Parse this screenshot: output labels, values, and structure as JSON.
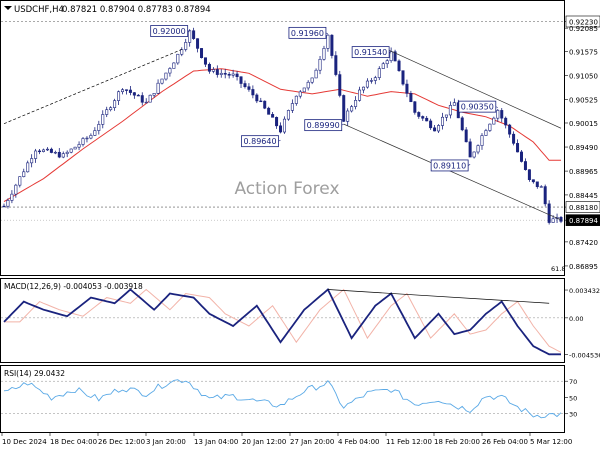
{
  "header": {
    "symbol": "USDCHF,H4",
    "ohlc": "0.87821 0.87904 0.87783 0.87894"
  },
  "watermark": "Action Forex",
  "colors": {
    "up": "#1a237e",
    "down": "#1a237e",
    "ma": "#e53935",
    "trend": "#000000",
    "macd": "#1a237e",
    "signal": "#f2b3a8",
    "rsi": "#5aa9e6",
    "grid": "#9e9e9e",
    "price_badge": "#000000"
  },
  "chart_data": [
    {
      "type": "candlestick",
      "name_label": "price",
      "x": [
        "10 Dec 2024",
        "18 Dec 04:00",
        "26 Dec 12:00",
        "3 Jan 20:00",
        "13 Jan 04:00",
        "20 Jan 12:00",
        "27 Jan 20:00",
        "4 Feb 04:00",
        "11 Feb 12:00",
        "18 Feb 20:00",
        "26 Feb 04:00",
        "5 Mar 12:00"
      ],
      "y_ticks": [
        "0.92230",
        "0.92085",
        "0.91575",
        "0.91050",
        "0.90525",
        "0.90015",
        "0.89490",
        "0.88965",
        "0.88445",
        "0.88180",
        "0.87894",
        "0.87420",
        "0.86895"
      ],
      "ylim": [
        0.8685,
        0.9235
      ],
      "current_price": "0.87894",
      "hlines": [
        {
          "value": 0.9223,
          "label": "0.92230"
        },
        {
          "value": 0.8818,
          "label": "0.88180"
        }
      ],
      "fib_label": "61.8",
      "annotations": [
        {
          "label": "0.92000",
          "value": 0.92,
          "bar": 47
        },
        {
          "label": "0.91960",
          "value": 0.9196,
          "bar": 82
        },
        {
          "label": "0.91540",
          "value": 0.9154,
          "bar": 98
        },
        {
          "label": "0.90350",
          "value": 0.9035,
          "bar": 125
        },
        {
          "label": "0.89640",
          "value": 0.8964,
          "bar": 70
        },
        {
          "label": "0.89990",
          "value": 0.8999,
          "bar": 86
        },
        {
          "label": "0.89110",
          "value": 0.8911,
          "bar": 118
        }
      ],
      "keypoints": [
        [
          0,
          0.882
        ],
        [
          8,
          0.8945
        ],
        [
          15,
          0.893
        ],
        [
          22,
          0.8975
        ],
        [
          30,
          0.908
        ],
        [
          36,
          0.9045
        ],
        [
          44,
          0.915
        ],
        [
          47,
          0.92
        ],
        [
          52,
          0.9115
        ],
        [
          58,
          0.9105
        ],
        [
          64,
          0.9055
        ],
        [
          70,
          0.8985
        ],
        [
          74,
          0.9065
        ],
        [
          78,
          0.9095
        ],
        [
          82,
          0.9195
        ],
        [
          86,
          0.901
        ],
        [
          90,
          0.907
        ],
        [
          94,
          0.9105
        ],
        [
          98,
          0.9154
        ],
        [
          104,
          0.9025
        ],
        [
          109,
          0.899
        ],
        [
          114,
          0.9045
        ],
        [
          118,
          0.8925
        ],
        [
          122,
          0.899
        ],
        [
          125,
          0.903
        ],
        [
          129,
          0.896
        ],
        [
          133,
          0.8875
        ],
        [
          136,
          0.886
        ],
        [
          138,
          0.879
        ]
      ],
      "ma_keypoints": [
        [
          0,
          0.883
        ],
        [
          10,
          0.888
        ],
        [
          20,
          0.8945
        ],
        [
          30,
          0.9005
        ],
        [
          40,
          0.907
        ],
        [
          48,
          0.9115
        ],
        [
          55,
          0.912
        ],
        [
          62,
          0.911
        ],
        [
          70,
          0.9075
        ],
        [
          78,
          0.9065
        ],
        [
          85,
          0.9075
        ],
        [
          92,
          0.906
        ],
        [
          98,
          0.907
        ],
        [
          104,
          0.9065
        ],
        [
          110,
          0.904
        ],
        [
          116,
          0.9025
        ],
        [
          122,
          0.9015
        ],
        [
          128,
          0.8995
        ],
        [
          134,
          0.896
        ],
        [
          138,
          0.892
        ]
      ],
      "trendlines": [
        {
          "from": [
            0,
            0.9
          ],
          "to": [
            45,
            0.9162
          ]
        },
        {
          "from": [
            97,
            0.9162
          ],
          "to": [
            141,
            0.899
          ]
        },
        {
          "from": [
            86,
            0.8999
          ],
          "to": [
            141,
            0.879
          ]
        }
      ]
    },
    {
      "type": "line",
      "name_label": "macd",
      "title": "MACD(12,26,9) -0.004053 -0.003918",
      "y_ticks": [
        "0.003432",
        "0.00",
        "-0.004536"
      ],
      "ylim": [
        -0.0052,
        0.0043
      ],
      "macd_keypoints": [
        [
          0,
          -0.0005
        ],
        [
          5,
          0.002
        ],
        [
          10,
          0.001
        ],
        [
          16,
          0.0002
        ],
        [
          22,
          0.0025
        ],
        [
          28,
          0.0018
        ],
        [
          32,
          0.0035
        ],
        [
          38,
          0.001
        ],
        [
          42,
          0.003
        ],
        [
          48,
          0.0025
        ],
        [
          52,
          0.0005
        ],
        [
          58,
          -0.001
        ],
        [
          64,
          0.0015
        ],
        [
          70,
          -0.003
        ],
        [
          76,
          0.001
        ],
        [
          82,
          0.0035
        ],
        [
          88,
          -0.0025
        ],
        [
          94,
          0.0015
        ],
        [
          98,
          0.003
        ],
        [
          104,
          -0.0025
        ],
        [
          110,
          0.0005
        ],
        [
          114,
          -0.002
        ],
        [
          118,
          -0.0015
        ],
        [
          122,
          0.0005
        ],
        [
          126,
          0.002
        ],
        [
          130,
          -0.001
        ],
        [
          134,
          -0.0035
        ],
        [
          138,
          -0.0045
        ]
      ],
      "trendline": {
        "from": [
          82,
          0.0035
        ],
        "to": [
          138,
          0.0018
        ]
      }
    },
    {
      "type": "line",
      "name_label": "rsi",
      "title": "RSI(14) 29.0432",
      "y_ticks": [
        "70",
        "50",
        "30"
      ],
      "ylim": [
        10,
        85
      ],
      "rsi_keypoints": [
        [
          0,
          55
        ],
        [
          6,
          68
        ],
        [
          12,
          50
        ],
        [
          18,
          60
        ],
        [
          24,
          48
        ],
        [
          30,
          62
        ],
        [
          36,
          55
        ],
        [
          42,
          70
        ],
        [
          46,
          72
        ],
        [
          52,
          48
        ],
        [
          58,
          52
        ],
        [
          64,
          45
        ],
        [
          70,
          40
        ],
        [
          76,
          58
        ],
        [
          82,
          68
        ],
        [
          86,
          38
        ],
        [
          92,
          55
        ],
        [
          98,
          60
        ],
        [
          104,
          42
        ],
        [
          110,
          48
        ],
        [
          114,
          40
        ],
        [
          118,
          35
        ],
        [
          122,
          52
        ],
        [
          126,
          50
        ],
        [
          130,
          38
        ],
        [
          134,
          28
        ],
        [
          138,
          29
        ]
      ]
    }
  ]
}
